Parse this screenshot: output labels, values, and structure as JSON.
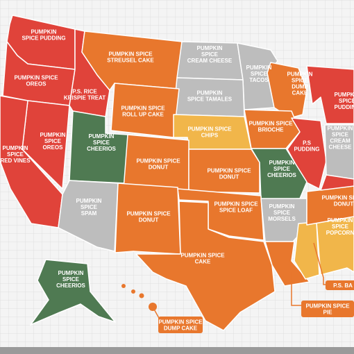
{
  "states": [
    {
      "label": [
        "PUMPKIN",
        "SPICE PUDDING"
      ]
    },
    {
      "label": [
        "PUMPKIN SPICE",
        "OREOS"
      ]
    },
    {
      "label": [
        "P.S. RICE",
        "KRISPIE TREAT"
      ]
    },
    {
      "label": [
        "PUMPKIN SPICE",
        "STREUSEL CAKE"
      ]
    },
    {
      "label": [
        "PUMPKIN",
        "SPICE",
        "CREAM CHEESE"
      ]
    },
    {
      "label": [
        "PUMPKIN",
        "SPICE",
        "TACOS"
      ]
    },
    {
      "label": [
        "PUMPKIN",
        "SPICE",
        "DUMP",
        "CAKE"
      ]
    },
    {
      "label": [
        "PUMPKIN",
        "SPICE",
        "PUDDING"
      ]
    },
    {
      "label": [
        "PUMPKIN",
        "SPICE TAMALES"
      ]
    },
    {
      "label": [
        "PUMPKIN SPICE",
        "ROLL UP CAKE"
      ]
    },
    {
      "label": [
        "PUMPKIN SPICE",
        "CHIPS"
      ]
    },
    {
      "label": [
        "PUMPKIN SPICE",
        "BRIOCHE"
      ]
    },
    {
      "label": [
        "P.S",
        "PUDDING"
      ]
    },
    {
      "label": [
        "PUMPKIN",
        "SPICE",
        "CREAM",
        "CHEESE"
      ]
    },
    {
      "label": [
        "PUMPKIN",
        "SPICE",
        "OREOS"
      ]
    },
    {
      "label": [
        "PUMPKIN",
        "SPICE",
        "RED VINES"
      ]
    },
    {
      "label": [
        "PUMPKIN",
        "SPICE",
        "CHEERIOS"
      ]
    },
    {
      "label": [
        "PUMPKIN SPICE",
        "DONUT"
      ]
    },
    {
      "label": [
        "PUMPKIN SPICE",
        "DONUT"
      ]
    },
    {
      "label": [
        "PUMPKIN",
        "SPICE",
        "CHEERIOS"
      ]
    },
    {
      "label": [
        "PUMPKIN",
        "SPICE",
        "SPAM"
      ]
    },
    {
      "label": [
        "PUMPKIN SPICE",
        "DONUT"
      ]
    },
    {
      "label": [
        "PUMPKIN SPICE",
        "SPICE LOAF"
      ]
    },
    {
      "label": [
        "PUMPKIN",
        "SPICE",
        "MORSELS"
      ]
    },
    {
      "label": [
        "PUMPKIN SPICE",
        "CAKE"
      ]
    },
    {
      "label": [
        "PUMPKIN",
        "SPICE",
        "POPCORN"
      ]
    },
    {
      "label": [
        "PUMPKIN SPICE",
        "DONUT"
      ]
    },
    {
      "label": [
        "PUMPKIN",
        "SPICE",
        "CHEERIOS"
      ]
    }
  ],
  "callouts": [
    {
      "label": [
        "PUMPKIN SPICE",
        "PIE"
      ]
    },
    {
      "label": [
        "P.S. BA"
      ]
    },
    {
      "label": [
        "PUMPKIN SPICE",
        "DUMP CAKE"
      ]
    }
  ]
}
